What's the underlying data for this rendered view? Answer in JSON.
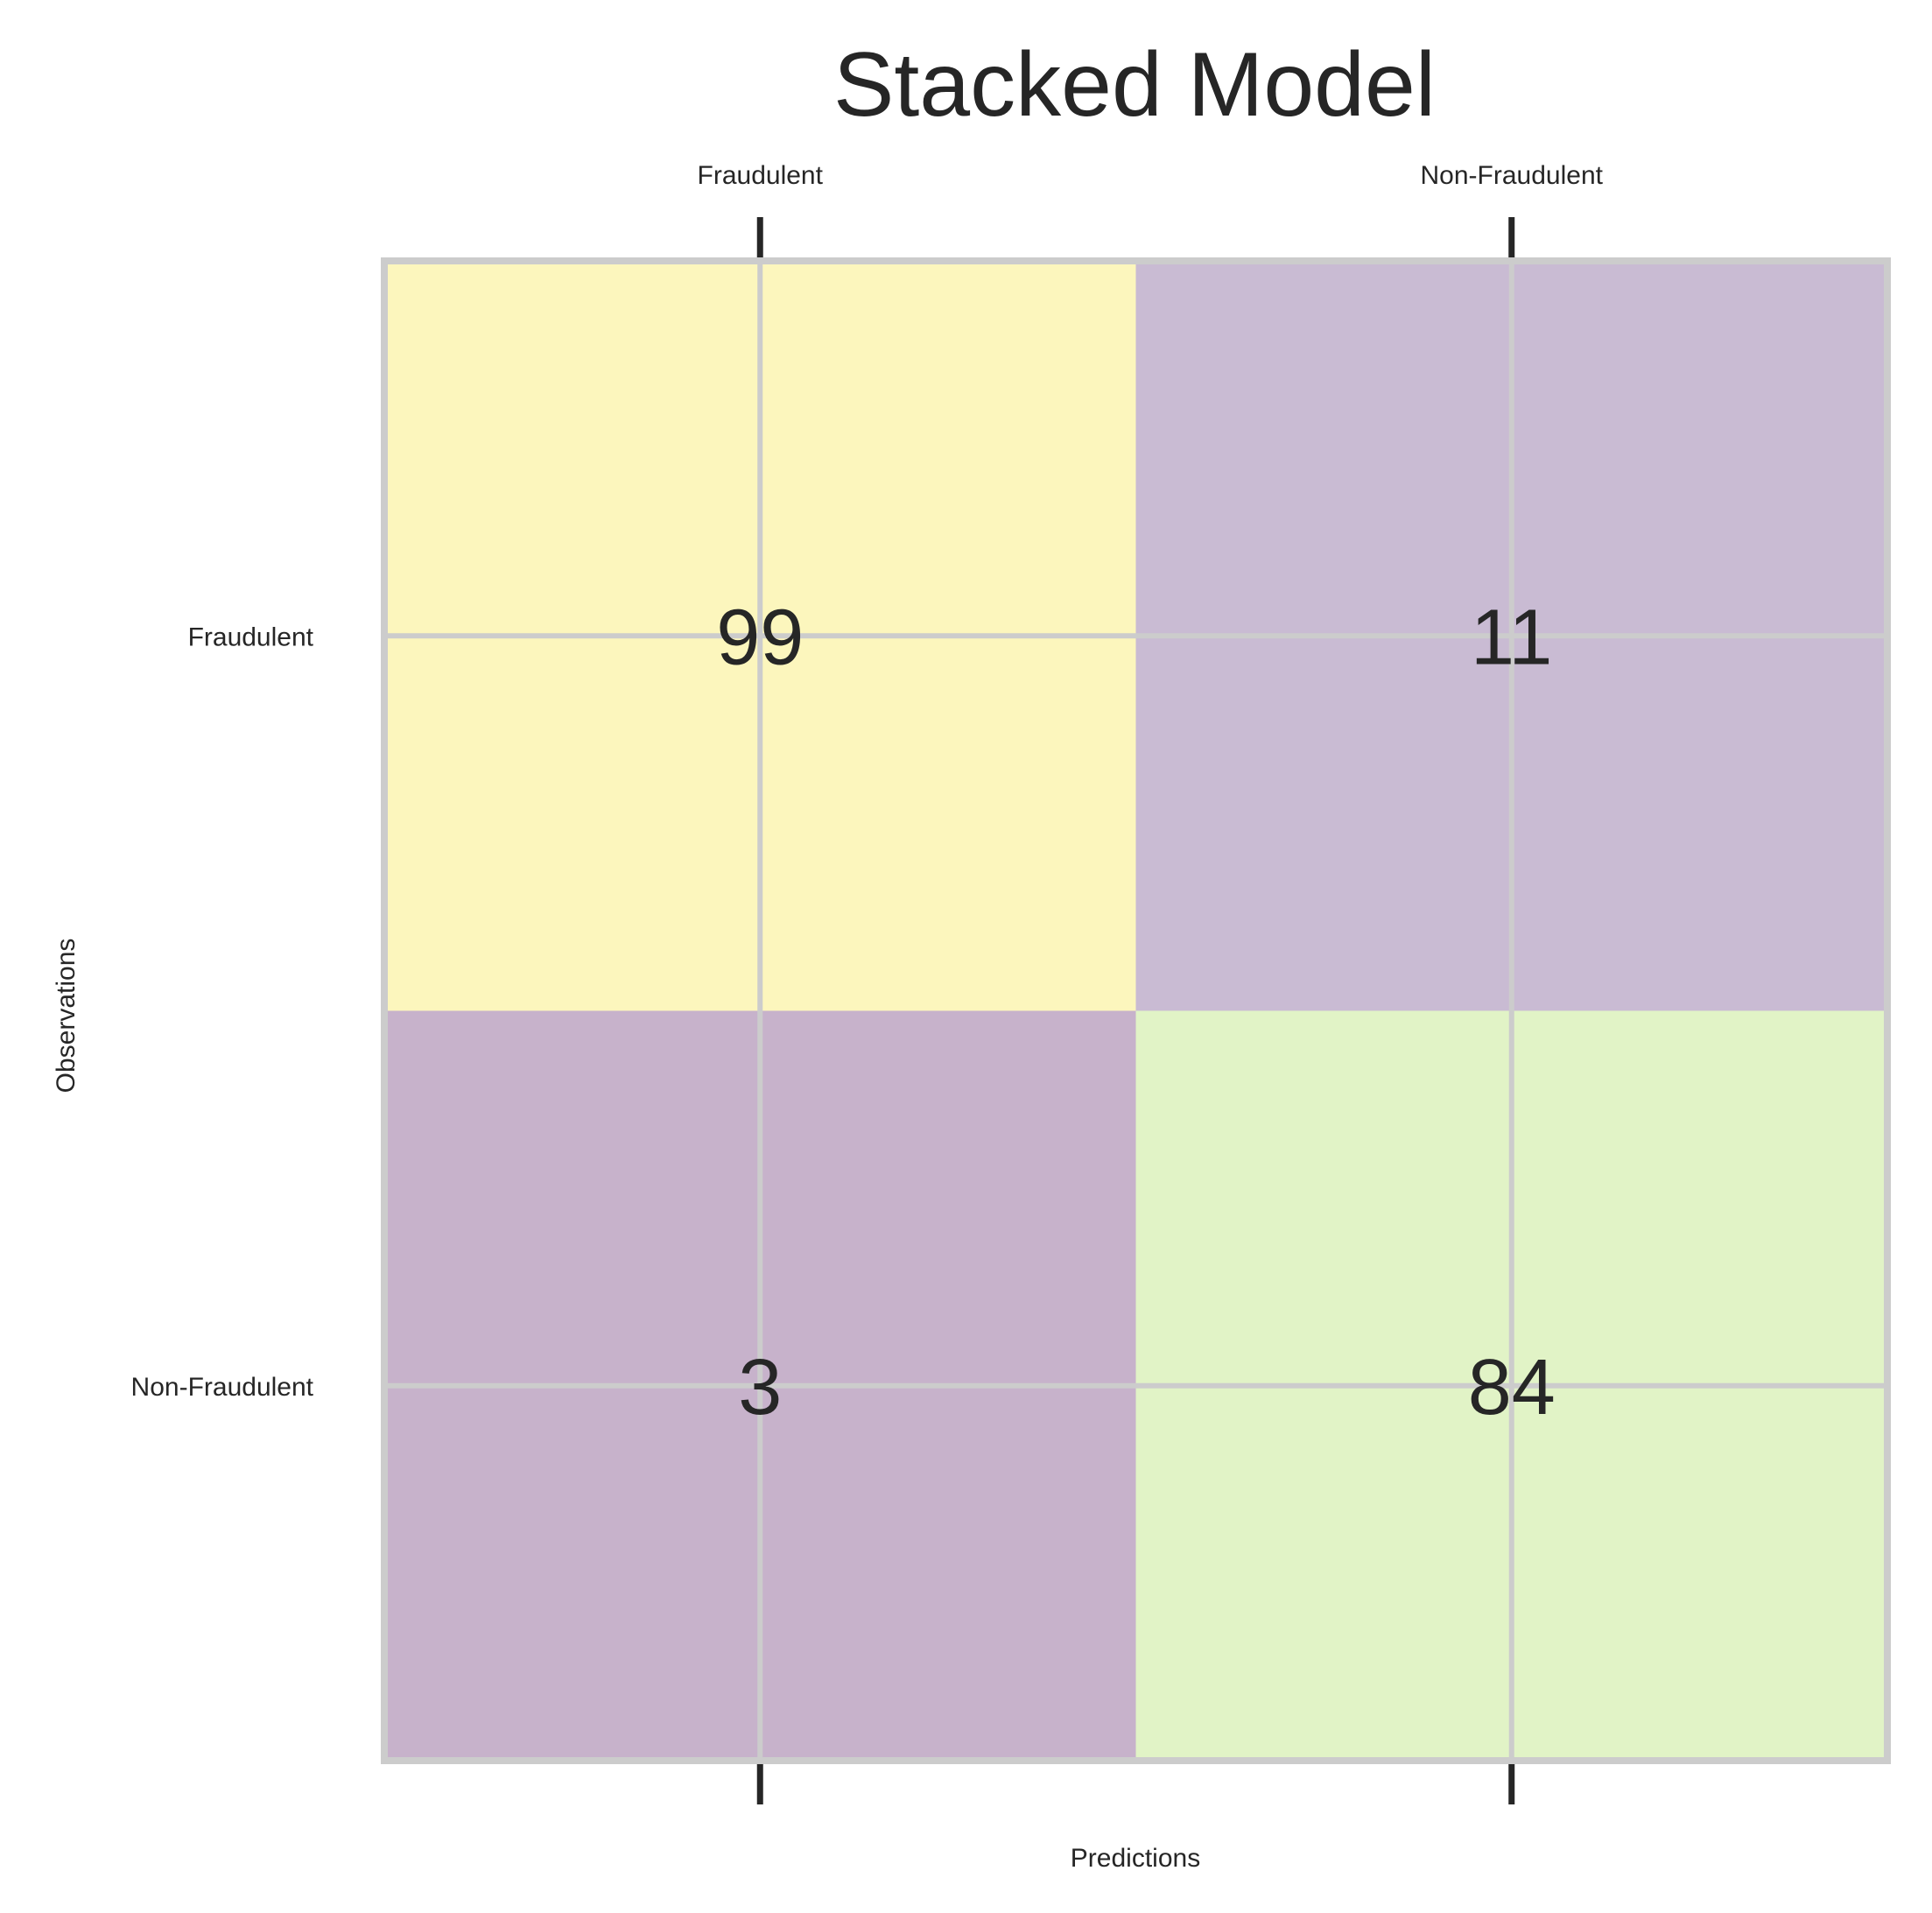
{
  "chart_data": {
    "type": "heatmap",
    "title": "Stacked Model",
    "xlabel": "Predictions",
    "ylabel": "Observations",
    "x_categories": [
      "Fraudulent",
      "Non-Fraudulent"
    ],
    "y_categories": [
      "Fraudulent",
      "Non-Fraudulent"
    ],
    "values": [
      [
        99,
        11
      ],
      [
        3,
        84
      ]
    ],
    "cell_colors": [
      [
        "#fcf6bd",
        "#c9bbd3"
      ],
      [
        "#c7b2cb",
        "#e1f3c6"
      ]
    ],
    "x_tick_position": "top",
    "grid": true
  }
}
